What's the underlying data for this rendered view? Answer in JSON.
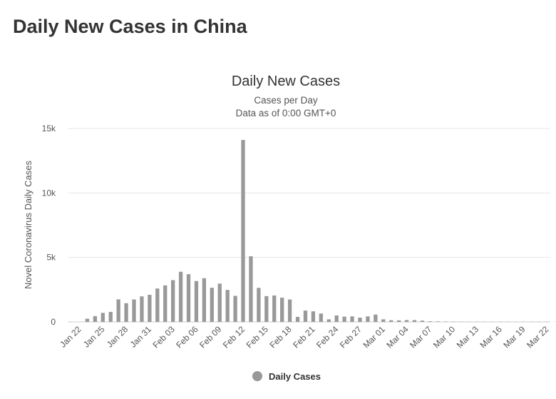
{
  "page": {
    "title": "Daily New Cases in China"
  },
  "chart_data": {
    "type": "bar",
    "title": "Daily New Cases",
    "subtitle_lines": [
      "Cases per Day",
      "Data as of 0:00 GMT+0"
    ],
    "xlabel": "",
    "ylabel": "Novel Coronavirus Daily Cases",
    "ylim": [
      0,
      15000
    ],
    "yticks": [
      0,
      5000,
      10000,
      15000
    ],
    "ytick_labels": [
      "0",
      "5k",
      "10k",
      "15k"
    ],
    "grid": true,
    "legend": {
      "position": "bottom",
      "entries": [
        {
          "name": "Daily Cases",
          "color": "#999999"
        }
      ]
    },
    "categories": [
      "Jan 22",
      "Jan 23",
      "Jan 24",
      "Jan 25",
      "Jan 26",
      "Jan 27",
      "Jan 28",
      "Jan 29",
      "Jan 30",
      "Jan 31",
      "Feb 01",
      "Feb 02",
      "Feb 03",
      "Feb 04",
      "Feb 05",
      "Feb 06",
      "Feb 07",
      "Feb 08",
      "Feb 09",
      "Feb 10",
      "Feb 11",
      "Feb 12",
      "Feb 13",
      "Feb 14",
      "Feb 15",
      "Feb 16",
      "Feb 17",
      "Feb 18",
      "Feb 19",
      "Feb 20",
      "Feb 21",
      "Feb 22",
      "Feb 23",
      "Feb 24",
      "Feb 25",
      "Feb 26",
      "Feb 27",
      "Feb 28",
      "Feb 29",
      "Mar 01",
      "Mar 02",
      "Mar 03",
      "Mar 04",
      "Mar 05",
      "Mar 06",
      "Mar 07",
      "Mar 08",
      "Mar 09",
      "Mar 10",
      "Mar 11",
      "Mar 12",
      "Mar 13",
      "Mar 14",
      "Mar 15",
      "Mar 16",
      "Mar 17",
      "Mar 18",
      "Mar 19",
      "Mar 20",
      "Mar 21",
      "Mar 22",
      "Mar 23",
      "Mar 24"
    ],
    "xtick_labels": [
      "Jan 22",
      "Jan 25",
      "Jan 28",
      "Jan 31",
      "Feb 03",
      "Feb 06",
      "Feb 09",
      "Feb 12",
      "Feb 15",
      "Feb 18",
      "Feb 21",
      "Feb 24",
      "Feb 27",
      "Mar 01",
      "Mar 04",
      "Mar 07",
      "Mar 10",
      "Mar 13",
      "Mar 16",
      "Mar 19",
      "Mar 22"
    ],
    "series": [
      {
        "name": "Daily Cases",
        "color": "#999999",
        "values": [
          0,
          250,
          450,
          700,
          780,
          1750,
          1450,
          1740,
          1980,
          2100,
          2590,
          2830,
          3240,
          3890,
          3700,
          3170,
          3390,
          2650,
          2970,
          2480,
          2020,
          14110,
          5090,
          2640,
          2000,
          2050,
          1880,
          1740,
          390,
          880,
          820,
          650,
          200,
          500,
          410,
          430,
          330,
          430,
          570,
          200,
          130,
          120,
          140,
          140,
          100,
          50,
          40,
          30,
          25,
          15,
          10,
          10,
          10,
          10,
          10,
          10,
          10,
          10,
          10,
          10,
          10,
          10,
          10
        ]
      }
    ]
  }
}
